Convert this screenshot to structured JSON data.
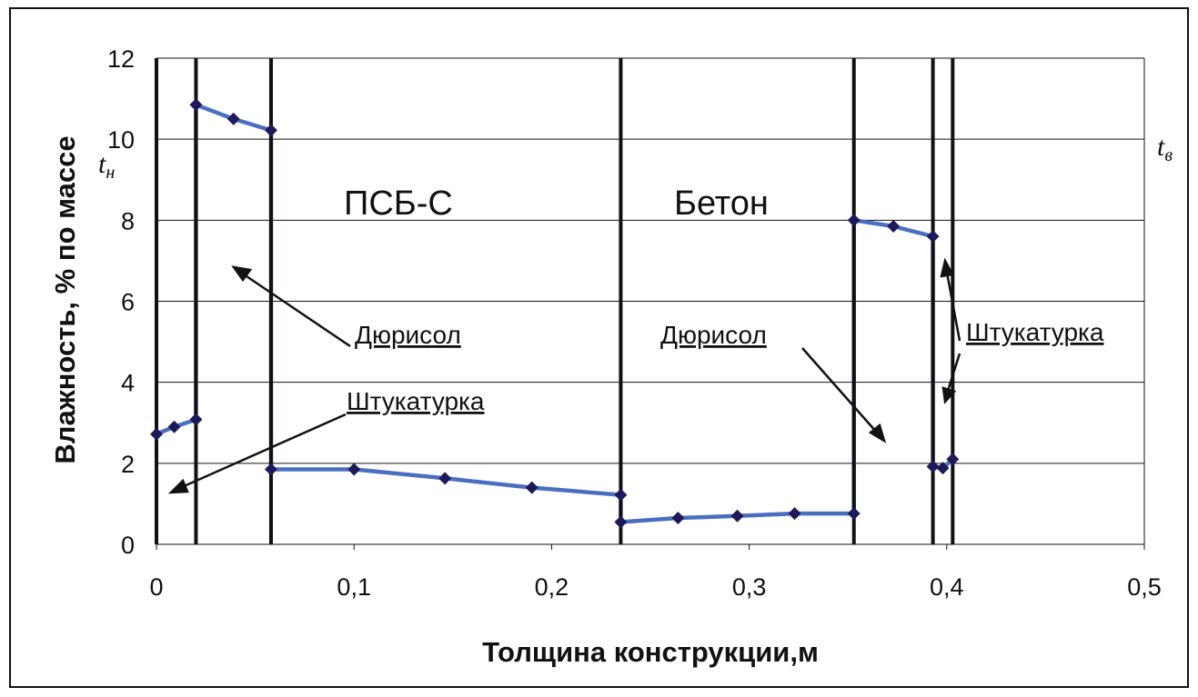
{
  "chart_data": {
    "type": "line",
    "xlabel": "Толщина конструкции,м",
    "ylabel": "Влажность, % по массе",
    "xlim": [
      0,
      0.5
    ],
    "ylim": [
      0,
      12
    ],
    "x_ticks": [
      "0",
      "0,1",
      "0,2",
      "0,3",
      "0,4",
      "0,5"
    ],
    "y_ticks": [
      "0",
      "2",
      "4",
      "6",
      "8",
      "10",
      "12"
    ],
    "grid": "horizontal",
    "colors": {
      "line": "#4a6fc1",
      "marker": "#1e1a5a",
      "boundary": "#111111"
    },
    "layer_boundaries": [
      0,
      0.02,
      0.058,
      0.235,
      0.353,
      0.393,
      0.403
    ],
    "series": [
      {
        "points": [
          [
            0,
            2.72
          ],
          [
            0.009,
            2.9
          ],
          [
            0.02,
            3.08
          ],
          [
            0.02,
            10.85
          ],
          [
            0.039,
            10.5
          ],
          [
            0.058,
            10.22
          ],
          [
            0.058,
            1.85
          ],
          [
            0.1,
            1.85
          ],
          [
            0.146,
            1.63
          ],
          [
            0.19,
            1.4
          ],
          [
            0.235,
            1.22
          ],
          [
            0.235,
            0.55
          ],
          [
            0.264,
            0.65
          ],
          [
            0.294,
            0.7
          ],
          [
            0.323,
            0.76
          ],
          [
            0.353,
            0.76
          ],
          [
            0.353,
            8.0
          ],
          [
            0.373,
            7.85
          ],
          [
            0.393,
            7.6
          ],
          [
            0.393,
            1.92
          ],
          [
            0.398,
            1.88
          ],
          [
            0.403,
            2.1
          ]
        ]
      }
    ],
    "materials": {
      "left": "ПСБ-С",
      "right": "Бетон"
    },
    "callouts": {
      "dyurisol_left": "Дюрисол",
      "shtukaturka_left": "Штукатурка",
      "dyurisol_right": "Дюрисол",
      "shtukaturka_right": "Штукатурка"
    },
    "temp_labels": {
      "outer": "t",
      "outer_sub": "н",
      "inner": "t",
      "inner_sub": "в"
    }
  }
}
